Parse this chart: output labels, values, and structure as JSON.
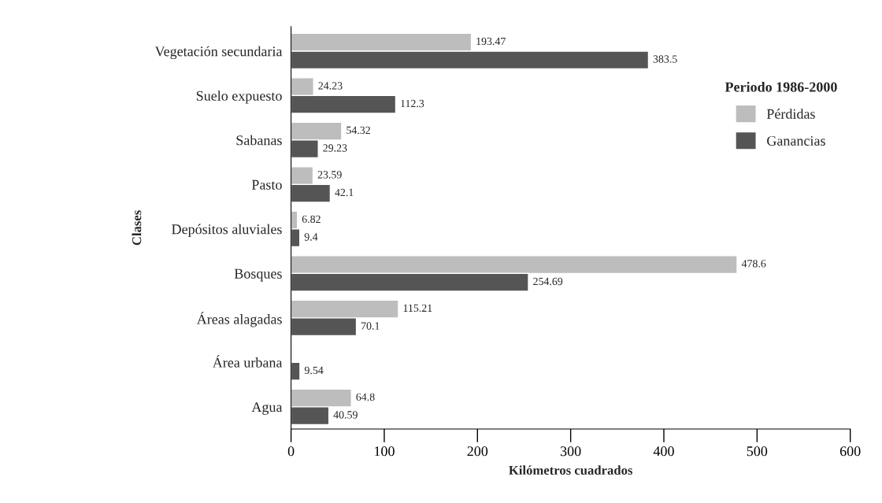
{
  "chart_data": {
    "type": "bar",
    "orientation": "horizontal",
    "ylabel": "Clases",
    "xlabel": "Kilómetros cuadrados",
    "legend_title": "Periodo 1986-2000",
    "legend": "right",
    "grid": false,
    "data_labels": true,
    "categories": [
      "Vegetación secundaria",
      "Suelo expuesto",
      "Sabanas",
      "Pasto",
      "Depósitos aluviales",
      "Bosques",
      "Áreas alagadas",
      "Área urbana",
      "Agua"
    ],
    "series": [
      {
        "name": "Pérdidas",
        "color": "#bdbdbd",
        "values": [
          193.47,
          24.23,
          54.32,
          23.59,
          6.82,
          478.6,
          115.21,
          null,
          64.8
        ]
      },
      {
        "name": "Ganancias",
        "color": "#555555",
        "values": [
          383.5,
          112.3,
          29.23,
          42.1,
          9.4,
          254.69,
          70.1,
          9.54,
          40.59
        ]
      }
    ],
    "xlim": [
      0,
      600
    ],
    "xticks": [
      0,
      100,
      200,
      300,
      400,
      500,
      600
    ]
  }
}
